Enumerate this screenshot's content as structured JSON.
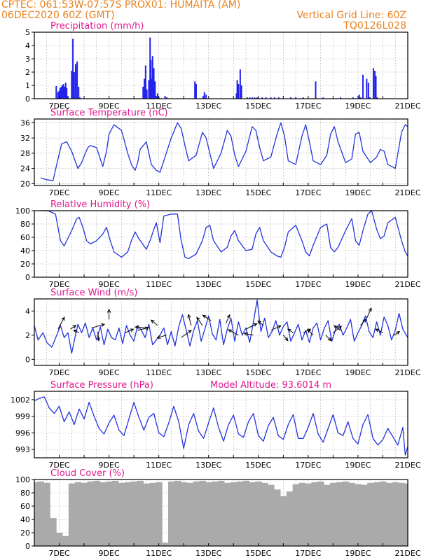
{
  "header": {
    "line1_left": "CPTEC:   061:53W-07:57S   PROX01: HUMAITA (AM)",
    "line2_left": "06DEC2020 60Z (GMT)",
    "line2_right": "Vertical Grid Line: 60Z",
    "line3_right": "TQ0126L028"
  },
  "colors": {
    "header": "#e8801c",
    "title": "#e0198f",
    "series": "#2233dd",
    "bar": "#2222ee",
    "cloud": "#aaaaaa",
    "grid": "#999999"
  },
  "chart_data": [
    {
      "type": "bar",
      "title": "Precipitation (mm/h)",
      "ylim": [
        0,
        5
      ],
      "yticks": [
        "0",
        "1",
        "2",
        "3",
        "4",
        "5"
      ],
      "xticks": [
        "7DEC",
        "9DEC",
        "11DEC",
        "13DEC",
        "15DEC",
        "17DEC",
        "19DEC",
        "21DEC"
      ],
      "x": [
        6.88,
        6.95,
        7.0,
        7.04,
        7.08,
        7.12,
        7.17,
        7.22,
        7.26,
        7.3,
        7.35,
        7.5,
        7.55,
        7.6,
        7.66,
        7.72,
        7.78,
        7.83,
        10.37,
        10.42,
        10.47,
        10.52,
        10.6,
        10.65,
        10.68,
        10.72,
        10.75,
        10.8,
        10.85,
        10.9,
        10.95,
        11.0,
        11.25,
        11.32,
        12.45,
        12.5,
        12.78,
        12.83,
        12.9,
        14.12,
        14.15,
        14.2,
        14.27,
        14.32,
        14.55,
        14.65,
        14.75,
        14.85,
        14.95,
        15.15,
        15.3,
        15.5,
        15.65,
        15.82,
        16.3,
        16.5,
        16.8,
        17.3,
        17.6,
        18.3,
        18.8,
        19.05,
        19.1,
        19.2,
        19.35,
        19.42,
        19.48,
        19.62,
        19.68,
        19.72,
        19.77
      ],
      "values": [
        0.95,
        0.5,
        0.6,
        0.8,
        0.9,
        1.0,
        1.1,
        0.9,
        1.2,
        0.8,
        0.2,
        2.1,
        4.5,
        2.0,
        2.6,
        2.8,
        0.9,
        0.1,
        0.9,
        1.5,
        2.5,
        0.7,
        1.4,
        4.6,
        2.9,
        1.5,
        3.2,
        2.3,
        1.3,
        0.2,
        0.4,
        0.1,
        0.2,
        0.1,
        1.3,
        1.1,
        0.2,
        0.5,
        0.3,
        0.4,
        1.4,
        1.1,
        2.2,
        1.0,
        0.1,
        0.1,
        0.1,
        0.1,
        0.1,
        0.1,
        0.1,
        0.1,
        0.1,
        0.1,
        0.1,
        0.1,
        0.1,
        1.3,
        0.1,
        0.1,
        0.1,
        0.3,
        0.1,
        1.8,
        1.5,
        1.2,
        0.1,
        2.3,
        2.1,
        1.7,
        0.1
      ]
    },
    {
      "type": "line",
      "title": "Surface Temperature (nC)",
      "ylim": [
        19.5,
        37
      ],
      "yticks": [
        "20",
        "24",
        "28",
        "32",
        "36"
      ],
      "xticks": [
        "7DEC",
        "9DEC",
        "11DEC",
        "13DEC",
        "15DEC",
        "17DEC",
        "19DEC",
        "21DEC"
      ],
      "x": [
        6.25,
        6.5,
        6.75,
        6.95,
        7.1,
        7.3,
        7.5,
        7.75,
        7.9,
        8.05,
        8.15,
        8.25,
        8.5,
        8.75,
        8.9,
        9.0,
        9.2,
        9.5,
        9.75,
        9.9,
        10.05,
        10.15,
        10.25,
        10.5,
        10.7,
        10.9,
        11.05,
        11.2,
        11.5,
        11.75,
        11.9,
        12.05,
        12.2,
        12.5,
        12.75,
        12.9,
        13.05,
        13.2,
        13.5,
        13.75,
        13.9,
        14.05,
        14.2,
        14.5,
        14.75,
        14.9,
        15.05,
        15.2,
        15.5,
        15.75,
        15.9,
        16.05,
        16.2,
        16.5,
        16.75,
        16.9,
        17.05,
        17.2,
        17.5,
        17.75,
        17.9,
        18.05,
        18.2,
        18.5,
        18.75,
        18.9,
        19.05,
        19.2,
        19.5,
        19.75,
        19.9,
        20.05,
        20.2,
        20.5,
        20.75,
        20.9,
        21.0
      ],
      "values": [
        21.5,
        21.0,
        20.8,
        26.5,
        30.5,
        31.0,
        28.5,
        24.0,
        25.5,
        28.0,
        29.5,
        30.0,
        29.5,
        24.5,
        28.5,
        33.0,
        35.5,
        34.0,
        28.0,
        25.0,
        23.5,
        25.5,
        29.0,
        31.0,
        25.0,
        23.5,
        23.0,
        26.0,
        32.0,
        36.0,
        34.5,
        30.0,
        26.0,
        27.5,
        33.5,
        32.0,
        28.0,
        24.0,
        28.0,
        34.0,
        32.5,
        27.5,
        24.5,
        28.5,
        35.0,
        34.0,
        29.5,
        26.0,
        27.0,
        33.0,
        36.0,
        32.5,
        26.0,
        25.0,
        32.5,
        35.5,
        31.0,
        26.0,
        25.0,
        27.5,
        33.0,
        35.0,
        31.0,
        25.5,
        26.5,
        33.0,
        33.5,
        28.5,
        25.5,
        27.0,
        29.0,
        28.5,
        25.0,
        24.0,
        33.5,
        35.5,
        35.0
      ]
    },
    {
      "type": "line",
      "title": "Relative Humidity (%)",
      "ylim": [
        0,
        100
      ],
      "yticks": [
        "0",
        "20",
        "40",
        "60",
        "80",
        "100"
      ],
      "xticks": [
        "7DEC",
        "9DEC",
        "11DEC",
        "13DEC",
        "15DEC",
        "17DEC",
        "19DEC",
        "21DEC"
      ],
      "x": [
        6.25,
        6.55,
        6.85,
        7.05,
        7.2,
        7.5,
        7.7,
        7.8,
        7.95,
        8.1,
        8.25,
        8.5,
        8.75,
        8.9,
        9.05,
        9.2,
        9.5,
        9.75,
        9.9,
        10.05,
        10.2,
        10.5,
        10.65,
        10.8,
        10.9,
        11.05,
        11.2,
        11.5,
        11.75,
        11.9,
        12.05,
        12.2,
        12.5,
        12.75,
        12.9,
        13.05,
        13.2,
        13.5,
        13.75,
        13.9,
        14.05,
        14.2,
        14.5,
        14.75,
        14.9,
        15.05,
        15.2,
        15.5,
        15.75,
        15.9,
        16.05,
        16.2,
        16.5,
        16.75,
        16.9,
        17.05,
        17.2,
        17.5,
        17.75,
        17.9,
        18.05,
        18.2,
        18.5,
        18.75,
        18.9,
        19.05,
        19.2,
        19.4,
        19.55,
        19.75,
        19.9,
        20.05,
        20.2,
        20.5,
        20.75,
        20.9,
        21.0
      ],
      "values": [
        100,
        100,
        95,
        55,
        47,
        70,
        88,
        90,
        75,
        55,
        50,
        55,
        65,
        75,
        55,
        38,
        30,
        38,
        55,
        68,
        58,
        42,
        55,
        72,
        82,
        52,
        92,
        95,
        95,
        55,
        30,
        28,
        35,
        55,
        75,
        78,
        55,
        38,
        45,
        62,
        70,
        55,
        40,
        42,
        65,
        75,
        55,
        38,
        32,
        30,
        45,
        68,
        78,
        55,
        38,
        32,
        48,
        75,
        80,
        45,
        38,
        45,
        70,
        88,
        55,
        48,
        70,
        95,
        100,
        72,
        58,
        62,
        82,
        90,
        55,
        38,
        32
      ]
    },
    {
      "type": "line",
      "title": "Surface Wind (m/s)",
      "ylim": [
        -0.5,
        5
      ],
      "yticks": [
        "0",
        "2",
        "4"
      ],
      "xticks": [
        "7DEC",
        "9DEC",
        "11DEC",
        "13DEC",
        "15DEC",
        "17DEC",
        "19DEC",
        "21DEC"
      ],
      "x": [
        6.0,
        6.15,
        6.35,
        6.5,
        6.7,
        6.9,
        7.05,
        7.2,
        7.35,
        7.5,
        7.6,
        7.75,
        7.9,
        8.05,
        8.2,
        8.35,
        8.5,
        8.65,
        8.8,
        8.95,
        9.1,
        9.25,
        9.4,
        9.55,
        9.7,
        9.85,
        10.0,
        10.15,
        10.3,
        10.45,
        10.6,
        10.75,
        10.9,
        11.05,
        11.2,
        11.35,
        11.5,
        11.65,
        11.8,
        11.95,
        12.1,
        12.25,
        12.4,
        12.55,
        12.7,
        12.85,
        13.0,
        13.15,
        13.3,
        13.45,
        13.6,
        13.75,
        13.9,
        14.05,
        14.2,
        14.35,
        14.5,
        14.65,
        14.8,
        14.95,
        15.1,
        15.25,
        15.4,
        15.55,
        15.7,
        15.85,
        16.0,
        16.15,
        16.3,
        16.45,
        16.6,
        16.75,
        16.9,
        17.05,
        17.2,
        17.35,
        17.5,
        17.65,
        17.8,
        17.95,
        18.1,
        18.25,
        18.4,
        18.55,
        18.7,
        18.85,
        19.0,
        19.15,
        19.3,
        19.45,
        19.6,
        19.75,
        19.9,
        20.05,
        20.2,
        20.35,
        20.5,
        20.65,
        20.8,
        21.0
      ],
      "values": [
        2.8,
        1.6,
        2.2,
        1.4,
        1.0,
        2.0,
        2.8,
        1.8,
        2.2,
        0.5,
        1.5,
        2.9,
        2.2,
        3.0,
        1.8,
        2.6,
        1.6,
        2.7,
        1.2,
        2.5,
        1.8,
        1.6,
        2.6,
        1.3,
        2.8,
        2.0,
        1.5,
        2.8,
        2.4,
        1.8,
        2.9,
        1.2,
        1.6,
        2.0,
        2.6,
        1.2,
        2.3,
        1.1,
        2.7,
        3.7,
        2.4,
        1.1,
        2.4,
        3.2,
        1.5,
        2.5,
        3.6,
        2.1,
        1.6,
        3.3,
        1.2,
        2.5,
        3.4,
        1.5,
        3.1,
        2.0,
        2.6,
        1.4,
        3.1,
        4.9,
        2.3,
        3.4,
        1.8,
        2.3,
        3.2,
        2.0,
        2.7,
        3.1,
        1.5,
        2.2,
        2.9,
        1.6,
        2.4,
        1.4,
        2.6,
        3.0,
        1.6,
        2.6,
        3.2,
        1.5,
        2.5,
        2.9,
        2.0,
        2.6,
        3.3,
        1.5,
        2.2,
        2.8,
        3.6,
        2.3,
        1.8,
        3.1,
        2.0,
        3.5,
        2.8,
        1.6,
        2.4,
        3.8,
        2.5,
        1.8
      ],
      "vectors": [
        {
          "x": 6.95,
          "speed": 2.5,
          "u": 0.35,
          "v": 0.65
        },
        {
          "x": 7.45,
          "speed": 2.5,
          "u": 0.3,
          "v": 0.2
        },
        {
          "x": 7.8,
          "speed": 2.2,
          "u": -0.3,
          "v": 0.15
        },
        {
          "x": 8.3,
          "speed": 2.6,
          "u": 0.7,
          "v": 0.2
        },
        {
          "x": 8.55,
          "speed": 2.3,
          "u": 0.05,
          "v": -0.5
        },
        {
          "x": 9.0,
          "speed": 3.3,
          "u": 0.0,
          "v": 0.55
        },
        {
          "x": 9.65,
          "speed": 2.2,
          "u": 0.45,
          "v": 0.2
        },
        {
          "x": 10.15,
          "speed": 2.4,
          "u": 0.6,
          "v": 0.15
        },
        {
          "x": 10.5,
          "speed": 2.6,
          "u": -0.6,
          "v": 0.05
        },
        {
          "x": 10.95,
          "speed": 2.8,
          "u": -0.35,
          "v": 0.3
        },
        {
          "x": 11.3,
          "speed": 2.0,
          "u": -0.5,
          "v": -0.15
        },
        {
          "x": 11.9,
          "speed": 1.8,
          "u": 0.55,
          "v": 0.4
        },
        {
          "x": 12.3,
          "speed": 2.8,
          "u": -0.15,
          "v": 0.6
        },
        {
          "x": 12.75,
          "speed": 2.8,
          "u": -0.3,
          "v": 0.45
        },
        {
          "x": 13.1,
          "speed": 3.2,
          "u": -0.45,
          "v": 0.3
        },
        {
          "x": 13.7,
          "speed": 3.0,
          "u": 0.2,
          "v": 0.45
        },
        {
          "x": 14.2,
          "speed": 2.0,
          "u": -0.55,
          "v": 0.3
        },
        {
          "x": 14.5,
          "speed": 2.5,
          "u": 0.6,
          "v": 0.3
        },
        {
          "x": 14.8,
          "speed": 2.0,
          "u": -0.5,
          "v": 0.1
        },
        {
          "x": 15.2,
          "speed": 2.8,
          "u": -0.3,
          "v": 0.25
        },
        {
          "x": 15.5,
          "speed": 2.4,
          "u": 0.55,
          "v": 0.25
        },
        {
          "x": 16.0,
          "speed": 2.0,
          "u": 0.25,
          "v": -0.3
        },
        {
          "x": 16.4,
          "speed": 2.2,
          "u": -0.3,
          "v": 0.2
        },
        {
          "x": 16.8,
          "speed": 2.2,
          "u": 0.4,
          "v": 0.2
        },
        {
          "x": 17.2,
          "speed": 2.0,
          "u": -0.3,
          "v": 0.3
        },
        {
          "x": 17.7,
          "speed": 2.0,
          "u": 0.3,
          "v": -0.3
        },
        {
          "x": 18.0,
          "speed": 2.2,
          "u": 0.45,
          "v": 0.35
        },
        {
          "x": 18.3,
          "speed": 2.4,
          "u": -0.35,
          "v": 0.25
        },
        {
          "x": 19.1,
          "speed": 2.8,
          "u": 0.3,
          "v": 0.35
        },
        {
          "x": 19.35,
          "speed": 3.4,
          "u": 0.25,
          "v": 0.55
        },
        {
          "x": 20.0,
          "speed": 2.2,
          "u": -0.4,
          "v": 0.2
        },
        {
          "x": 20.45,
          "speed": 2.0,
          "u": 0.3,
          "v": 0.2
        }
      ]
    },
    {
      "type": "line",
      "title": "Surface Pressure (hPa)",
      "annotation": "Model Altitude: 93.6014 m",
      "ylim": [
        991.5,
        1003.5
      ],
      "yticks": [
        "993",
        "996",
        "999",
        "1002"
      ],
      "xticks": [
        "7DEC",
        "9DEC",
        "11DEC",
        "13DEC",
        "15DEC",
        "17DEC",
        "19DEC",
        "21DEC"
      ],
      "x": [
        6.0,
        6.2,
        6.4,
        6.6,
        6.8,
        7.0,
        7.2,
        7.4,
        7.6,
        7.8,
        8.0,
        8.2,
        8.4,
        8.6,
        8.8,
        9.0,
        9.2,
        9.4,
        9.6,
        9.8,
        10.0,
        10.2,
        10.4,
        10.6,
        10.8,
        11.0,
        11.2,
        11.4,
        11.6,
        11.8,
        12.0,
        12.2,
        12.4,
        12.6,
        12.8,
        13.0,
        13.2,
        13.4,
        13.6,
        13.8,
        14.0,
        14.2,
        14.4,
        14.6,
        14.8,
        15.0,
        15.2,
        15.4,
        15.6,
        15.8,
        16.0,
        16.2,
        16.4,
        16.6,
        16.8,
        17.0,
        17.2,
        17.4,
        17.6,
        17.8,
        18.0,
        18.2,
        18.4,
        18.6,
        18.8,
        19.0,
        19.2,
        19.4,
        19.6,
        19.8,
        20.0,
        20.2,
        20.4,
        20.6,
        20.8,
        20.9,
        21.0
      ],
      "values": [
        1001.8,
        1002.2,
        1002.5,
        1000.5,
        999.5,
        1000.8,
        998.0,
        999.8,
        997.5,
        1000.3,
        998.5,
        1001.5,
        999.0,
        996.8,
        995.8,
        997.8,
        999.2,
        996.5,
        995.5,
        998.5,
        1001.5,
        998.8,
        996.5,
        998.8,
        999.5,
        996.0,
        995.3,
        997.8,
        1000.8,
        998.0,
        993.2,
        997.5,
        999.5,
        996.3,
        995.0,
        997.8,
        1000.5,
        997.0,
        994.5,
        997.5,
        999.2,
        995.8,
        995.2,
        998.0,
        999.5,
        995.5,
        994.5,
        997.3,
        998.8,
        995.5,
        994.8,
        997.5,
        999.3,
        995.0,
        995.0,
        997.0,
        999.5,
        995.8,
        994.3,
        996.8,
        999.3,
        996.0,
        995.5,
        998.0,
        995.0,
        994.0,
        997.5,
        999.3,
        995.0,
        993.8,
        994.8,
        996.8,
        995.3,
        993.8,
        997.0,
        992.0,
        993.5
      ]
    },
    {
      "type": "bar",
      "title": "Cloud Cover (%)",
      "ylim": [
        0,
        100
      ],
      "yticks": [
        "0",
        "20",
        "40",
        "60",
        "80",
        "100"
      ],
      "xticks": [
        "7DEC",
        "9DEC",
        "11DEC",
        "13DEC",
        "15DEC",
        "17DEC",
        "19DEC",
        "21DEC"
      ],
      "x": [
        6.0,
        6.25,
        6.5,
        6.75,
        7.0,
        7.25,
        7.5,
        7.75,
        8.0,
        8.25,
        8.5,
        8.75,
        9.0,
        9.25,
        9.5,
        9.75,
        10.0,
        10.25,
        10.5,
        10.75,
        11.0,
        11.25,
        11.5,
        11.75,
        12.0,
        12.25,
        12.5,
        12.75,
        13.0,
        13.25,
        13.5,
        13.75,
        14.0,
        14.25,
        14.5,
        14.75,
        15.0,
        15.25,
        15.5,
        15.75,
        16.0,
        16.25,
        16.5,
        16.75,
        17.0,
        17.25,
        17.5,
        17.75,
        18.0,
        18.25,
        18.5,
        18.75,
        19.0,
        19.25,
        19.5,
        19.75,
        20.0,
        20.25,
        20.5,
        20.75,
        21.0
      ],
      "values": [
        96,
        97,
        95,
        42,
        20,
        15,
        94,
        96,
        95,
        97,
        98,
        96,
        97,
        98,
        95,
        96,
        97,
        98,
        94,
        95,
        96,
        5,
        97,
        98,
        96,
        95,
        97,
        98,
        96,
        97,
        98,
        95,
        96,
        97,
        98,
        96,
        97,
        95,
        92,
        85,
        75,
        82,
        93,
        95,
        94,
        96,
        97,
        92,
        95,
        96,
        97,
        95,
        93,
        92,
        95,
        96,
        97,
        95,
        96,
        95,
        94
      ]
    }
  ]
}
